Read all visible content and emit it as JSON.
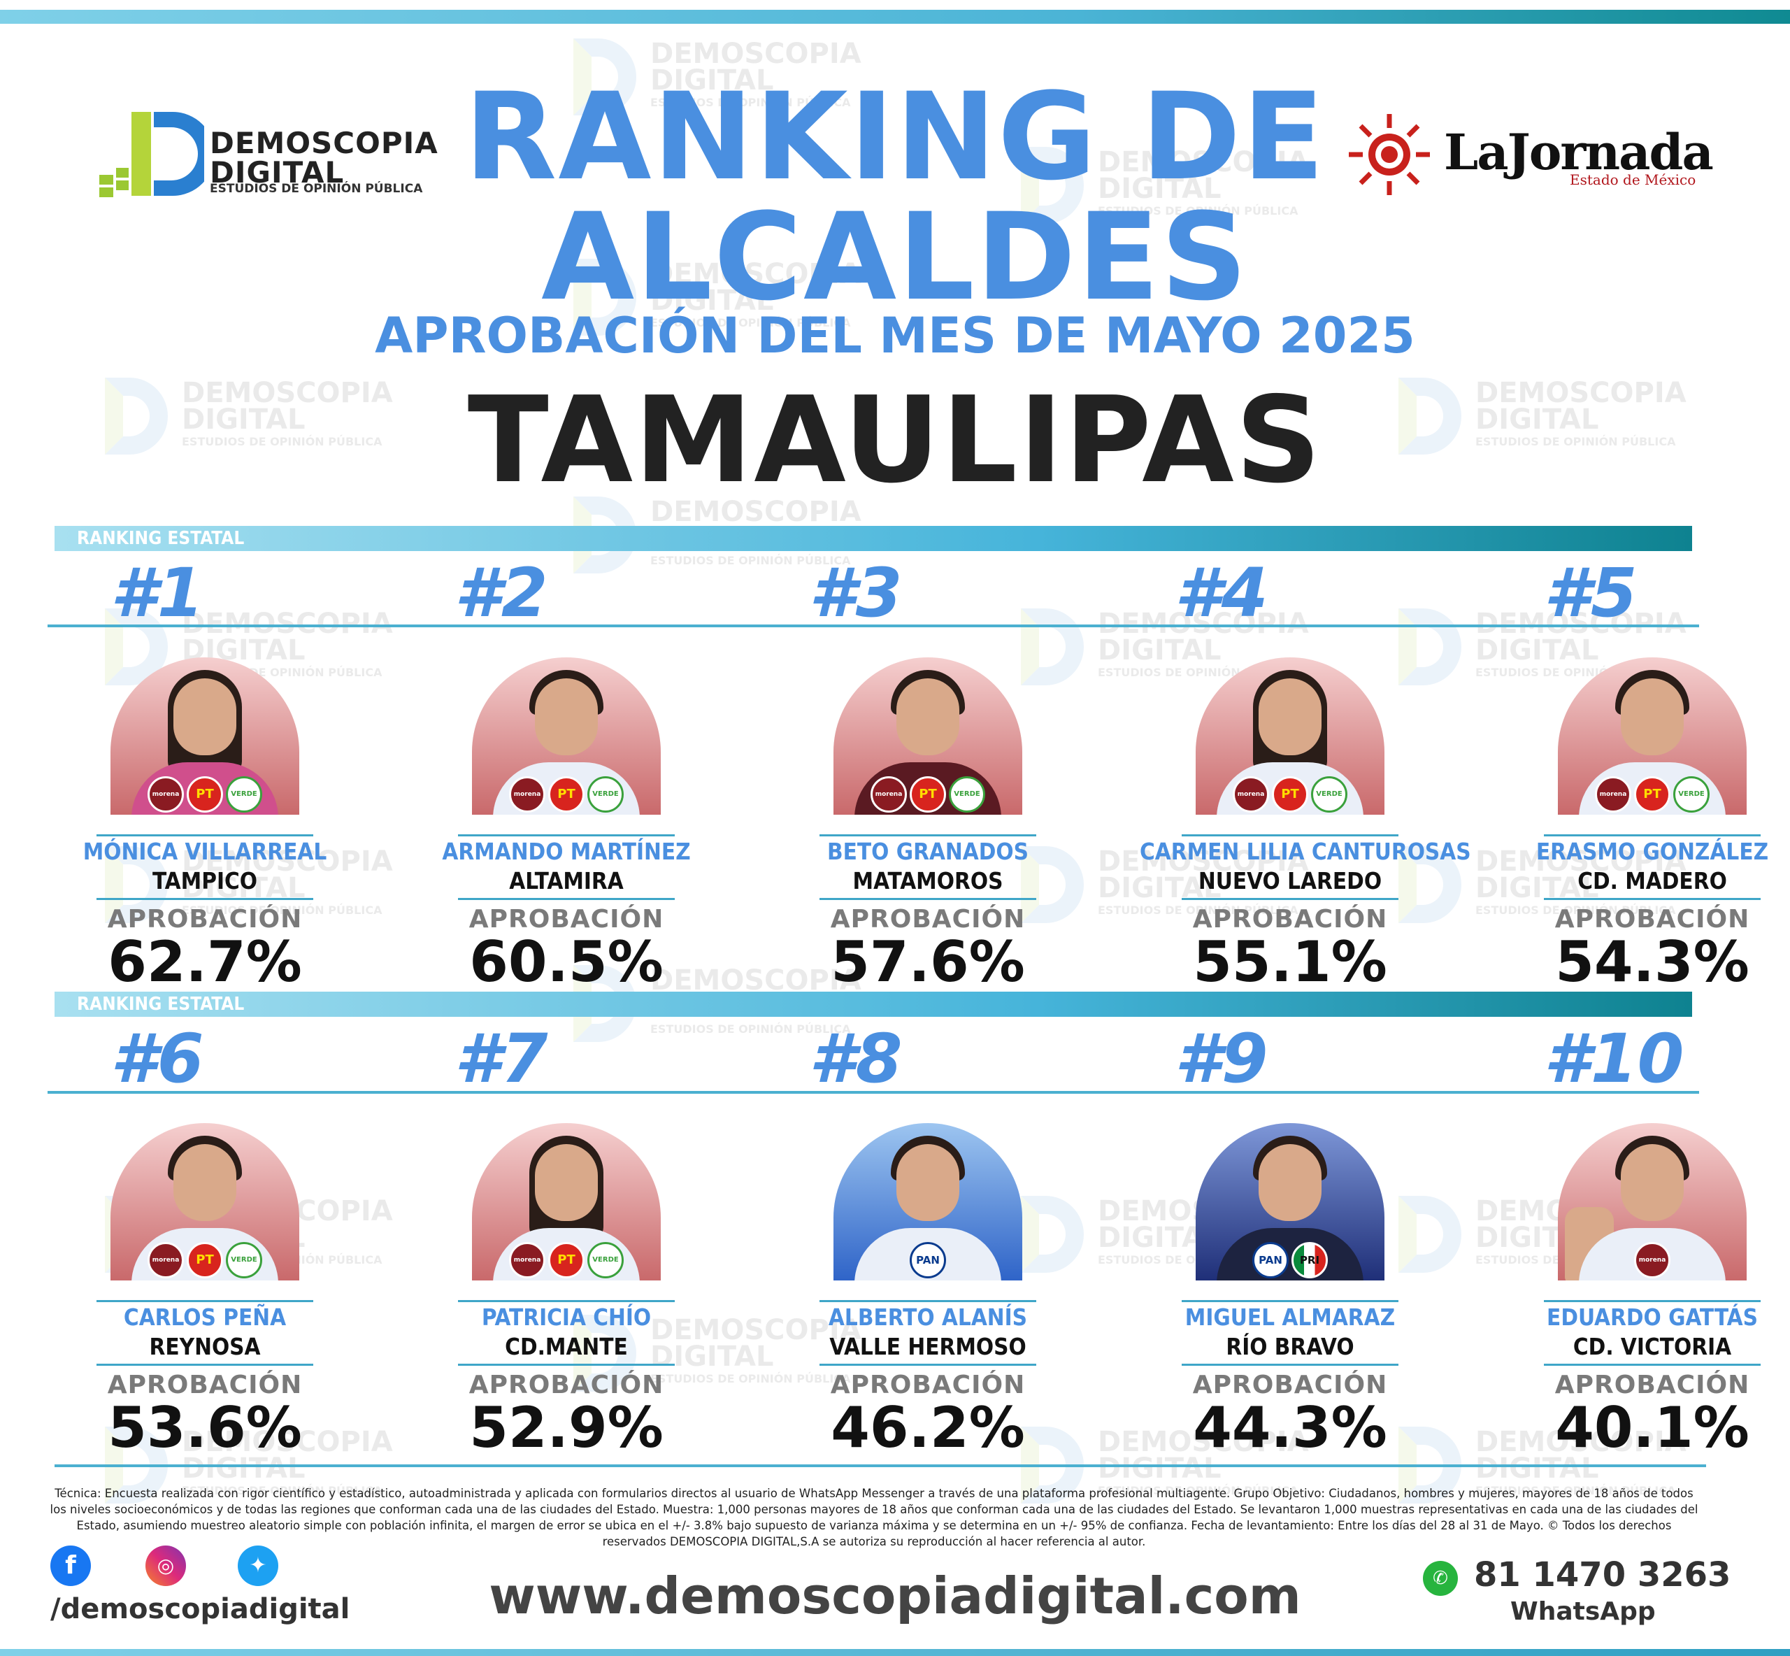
{
  "header": {
    "title_line1": "RANKING DE",
    "title_line2": "ALCALDES",
    "subtitle": "APROBACIÓN DEL MES DE MAYO 2025",
    "state": "TAMAULIPAS"
  },
  "logo_left": {
    "line1": "DEMOSCOPIA",
    "line2": "DIGITAL",
    "tagline": "ESTUDIOS DE OPINIÓN PÚBLICA"
  },
  "logo_right": {
    "name": "LaJornada",
    "sub": "Estado de México"
  },
  "section_label": "RANKING ESTATAL",
  "approval_label": "APROBACIÓN",
  "mayors": [
    {
      "rank": "#1",
      "name": "MÓNICA VILLARREAL",
      "city": "TAMPICO",
      "approval": "62.7%",
      "parties": [
        "morena",
        "PT",
        "VERDE"
      ]
    },
    {
      "rank": "#2",
      "name": "ARMANDO MARTÍNEZ",
      "city": "ALTAMIRA",
      "approval": "60.5%",
      "parties": [
        "morena",
        "PT",
        "VERDE"
      ]
    },
    {
      "rank": "#3",
      "name": "BETO GRANADOS",
      "city": "MATAMOROS",
      "approval": "57.6%",
      "parties": [
        "morena",
        "PT",
        "VERDE"
      ]
    },
    {
      "rank": "#4",
      "name": "CARMEN LILIA CANTUROSAS",
      "city": "NUEVO LAREDO",
      "approval": "55.1%",
      "parties": [
        "morena",
        "PT",
        "VERDE"
      ]
    },
    {
      "rank": "#5",
      "name": "ERASMO GONZÁLEZ",
      "city": "CD. MADERO",
      "approval": "54.3%",
      "parties": [
        "morena",
        "PT",
        "VERDE"
      ]
    },
    {
      "rank": "#6",
      "name": "CARLOS PEÑA",
      "city": "REYNOSA",
      "approval": "53.6%",
      "parties": [
        "morena",
        "PT",
        "VERDE"
      ]
    },
    {
      "rank": "#7",
      "name": "PATRICIA CHÍO",
      "city": "CD.MANTE",
      "approval": "52.9%",
      "parties": [
        "morena",
        "PT",
        "VERDE"
      ]
    },
    {
      "rank": "#8",
      "name": "ALBERTO ALANÍS",
      "city": "VALLE HERMOSO",
      "approval": "46.2%",
      "parties": [
        "PAN"
      ]
    },
    {
      "rank": "#9",
      "name": "MIGUEL ALMARAZ",
      "city": "RÍO BRAVO",
      "approval": "44.3%",
      "parties": [
        "PAN",
        "PRI"
      ]
    },
    {
      "rank": "#10",
      "name": "EDUARDO GATTÁS",
      "city": "CD. VICTORIA",
      "approval": "40.1%",
      "parties": [
        "morena"
      ]
    }
  ],
  "footer": {
    "fine_print": "Técnica: Encuesta realizada con rigor científico y estadístico, autoadministrada y aplicada con formularios directos al usuario de WhatsApp Messenger a través de una plataforma profesional multiagente. Grupo Objetivo: Ciudadanos, hombres y mujeres, mayores de 18 años de todos los niveles socioeconómicos y de todas las regiones que conforman cada una de las ciudades del Estado. Muestra: 1,000 personas mayores de 18 años que conforman cada una de las ciudades del Estado. Se levantaron 1,000 muestras representativas en cada una de las ciudades del Estado, asumiendo muestreo aleatorio simple con población infinita, el margen de error se ubica en el +/- 3.8% bajo supuesto de varianza máxima y se determina en un +/- 95% de confianza. Fecha de levantamiento: Entre los días del 28 al 31 de Mayo. © Todos los derechos reservados DEMOSCOPIA DIGITAL,S.A se autoriza su reproducción al hacer referencia al autor.",
    "handle": "/demoscopiadigital",
    "website": "www.demoscopiadigital.com",
    "whatsapp_number": "81 1470 3263",
    "whatsapp_label": "WhatsApp",
    "social_icons": [
      "facebook-icon",
      "instagram-icon",
      "twitter-icon"
    ]
  },
  "colors": {
    "accent_blue": "#4a8fe0",
    "teal": "#0e8290",
    "morena": "#8a1b22",
    "pt": "#d8241e",
    "verde": "#3aa13c"
  }
}
